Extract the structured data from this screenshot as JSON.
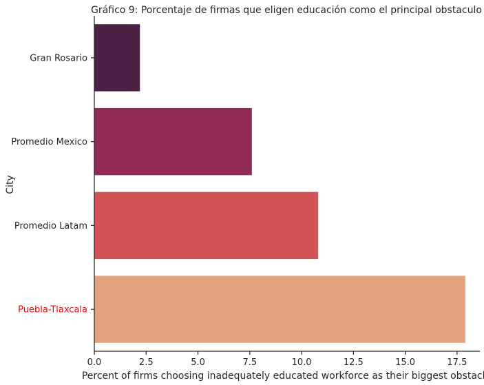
{
  "chart_data": {
    "type": "bar",
    "orientation": "horizontal",
    "title": "Gráfico 9: Porcentaje de firmas que eligen educación como el principal obstaculo",
    "xlabel": "Percent of firms choosing inadequately educated workforce as their biggest obstacle",
    "ylabel": "City",
    "categories": [
      "Gran Rosario",
      "Promedio Mexico",
      "Promedio Latam",
      "Puebla-Tlaxcala"
    ],
    "values": [
      2.2,
      7.6,
      10.8,
      17.9
    ],
    "colors": [
      "#4b2146",
      "#922a58",
      "#d35457",
      "#e5a27f"
    ],
    "highlight": {
      "category": "Puebla-Tlaxcala",
      "label_color": "#ff0000"
    },
    "default_label_color": "#262626",
    "xlim": [
      0,
      18.6
    ],
    "xticks": [
      0.0,
      2.5,
      5.0,
      7.5,
      10.0,
      12.5,
      15.0,
      17.5
    ],
    "xtick_labels": [
      "0.0",
      "2.5",
      "5.0",
      "7.5",
      "10.0",
      "12.5",
      "15.0",
      "17.5"
    ],
    "grid": false
  }
}
